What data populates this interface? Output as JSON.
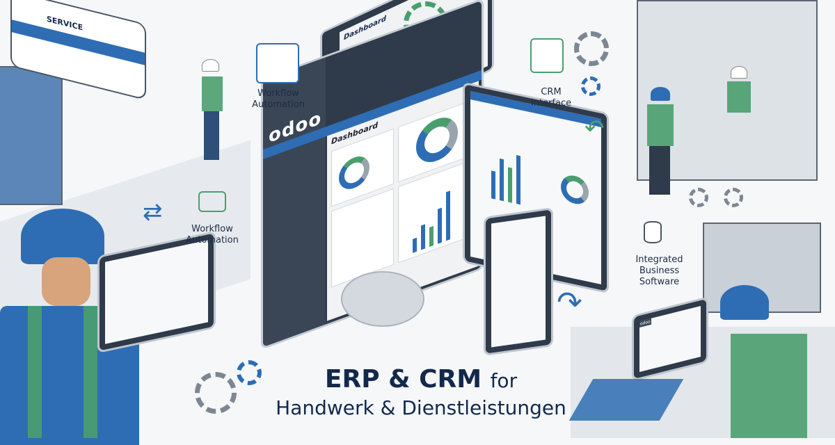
{
  "van": {
    "label": "SERVICE"
  },
  "labels": {
    "workflow_top": "Workflow Automation",
    "workflow_left": "Workflow Automation",
    "crm": "CRM Interface",
    "integrated": "Integrated Business Software"
  },
  "monitor": {
    "logo": "odoo",
    "dashboard_title": "Dashboard"
  },
  "back_monitor": {
    "dashboard_title": "Dashboard"
  },
  "laptop": {
    "logo": "odoo"
  },
  "headline": {
    "line1": "ERP & CRM",
    "line1_suffix": "for",
    "line2": "Handwerk & Dienstleistungen"
  },
  "colors": {
    "brand_blue": "#2e6db4",
    "accent_green": "#4a9e6e",
    "title_navy": "#13294b"
  }
}
